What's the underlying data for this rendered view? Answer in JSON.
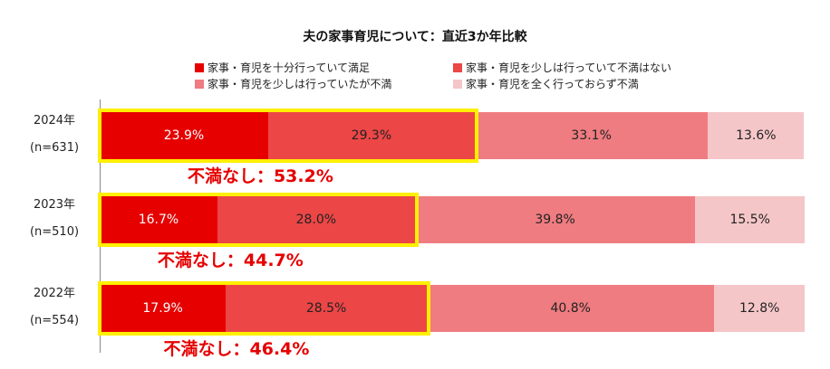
{
  "chart_data": {
    "type": "bar",
    "orientation": "horizontal",
    "stacked": true,
    "title": "夫の家事育児について：直近3か年比較",
    "categories": [
      {
        "year": "2024年",
        "n": "(n=631)"
      },
      {
        "year": "2023年",
        "n": "(n=510)"
      },
      {
        "year": "2022年",
        "n": "(n=554)"
      }
    ],
    "series": [
      {
        "name": "家事・育児を十分行っていて満足",
        "color": "#e60000",
        "label_color": "#ffffff",
        "values": [
          23.9,
          16.7,
          17.9
        ]
      },
      {
        "name": "家事・育児を少しは行っていて不満はない",
        "color": "#ec4646",
        "label_color": "#222222",
        "values": [
          29.3,
          28.0,
          28.5
        ]
      },
      {
        "name": "家事・育児を少しは行っていたが不満",
        "color": "#ef7c80",
        "label_color": "#222222",
        "values": [
          33.1,
          39.8,
          40.8
        ]
      },
      {
        "name": "家事・育児を全く行っておらず不満",
        "color": "#f5c6c8",
        "label_color": "#222222",
        "values": [
          13.6,
          15.5,
          12.8
        ]
      }
    ],
    "data_labels": [
      [
        "23.9%",
        "29.3%",
        "33.1%",
        "13.6%"
      ],
      [
        "16.7%",
        "28.0%",
        "39.8%",
        "15.5%"
      ],
      [
        "17.9%",
        "28.5%",
        "40.8%",
        "12.8%"
      ]
    ],
    "annotations": [
      "不満なし：53.2%",
      "不満なし：44.7%",
      "不満なし：46.4%"
    ],
    "highlight_color": "#ffef00",
    "annotation_color": "#e60000",
    "xlim": [
      0,
      100
    ],
    "legend_position": "top",
    "grid": false
  }
}
